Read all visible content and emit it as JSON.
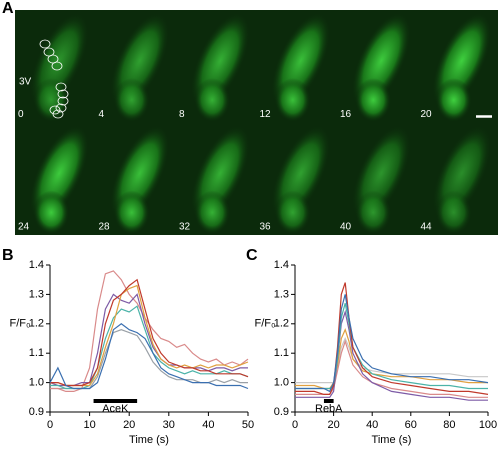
{
  "panel_labels": [
    "A",
    "B",
    "C"
  ],
  "frames": [
    0,
    4,
    8,
    12,
    16,
    20,
    24,
    28,
    32,
    36,
    40,
    44
  ],
  "region_label": "3V",
  "chart_data": [
    {
      "type": "line",
      "x_label": "Time (s)",
      "y_label": "F/F₀",
      "xlim": [
        0,
        50
      ],
      "xticks": [
        0,
        10,
        20,
        30,
        40,
        50
      ],
      "ylim": [
        0.9,
        1.4
      ],
      "yticks": [
        0.9,
        {
          "value": 1,
          "label": "1.0"
        },
        1.1,
        1.2,
        1.3,
        1.4
      ],
      "stimulus": {
        "label": "AceK",
        "x": [
          11,
          22
        ]
      },
      "x": [
        0,
        2,
        4,
        6,
        8,
        10,
        12,
        14,
        16,
        18,
        20,
        22,
        24,
        26,
        28,
        30,
        32,
        34,
        36,
        38,
        40,
        42,
        44,
        46,
        48,
        50
      ],
      "series": [
        {
          "color": "#9aa0a6",
          "values": [
            0.98,
            0.98,
            0.98,
            0.98,
            0.98,
            0.98,
            1.02,
            1.1,
            1.17,
            1.18,
            1.17,
            1.16,
            1.12,
            1.07,
            1.04,
            1.02,
            1.01,
            1.01,
            1.01,
            1.0,
            1.0,
            1.01,
            1.0,
            1.01,
            1.0,
            1.0
          ]
        },
        {
          "color": "#d98a8a",
          "values": [
            0.98,
            0.98,
            0.97,
            0.97,
            0.98,
            1.05,
            1.25,
            1.37,
            1.38,
            1.35,
            1.3,
            1.27,
            1.22,
            1.18,
            1.15,
            1.14,
            1.12,
            1.13,
            1.1,
            1.08,
            1.07,
            1.08,
            1.06,
            1.07,
            1.06,
            1.08
          ]
        },
        {
          "color": "#7d5ba6",
          "values": [
            1.0,
            0.99,
            0.99,
            0.99,
            1.0,
            1.0,
            1.1,
            1.25,
            1.3,
            1.28,
            1.27,
            1.3,
            1.2,
            1.12,
            1.08,
            1.06,
            1.06,
            1.05,
            1.05,
            1.05,
            1.04,
            1.05,
            1.05,
            1.04,
            1.05,
            1.05
          ]
        },
        {
          "color": "#4bb3a8",
          "values": [
            0.99,
            0.99,
            0.98,
            0.98,
            0.98,
            0.99,
            1.05,
            1.15,
            1.22,
            1.25,
            1.24,
            1.26,
            1.18,
            1.1,
            1.07,
            1.05,
            1.04,
            1.03,
            1.04,
            1.03,
            1.03,
            1.03,
            1.04,
            1.03,
            1.03,
            1.02
          ]
        },
        {
          "color": "#e0a040",
          "values": [
            1.0,
            1.0,
            0.99,
            0.99,
            0.99,
            0.99,
            1.03,
            1.12,
            1.2,
            1.3,
            1.32,
            1.33,
            1.22,
            1.13,
            1.08,
            1.06,
            1.05,
            1.06,
            1.05,
            1.06,
            1.05,
            1.06,
            1.06,
            1.05,
            1.06,
            1.07
          ]
        },
        {
          "color": "#c0392b",
          "values": [
            1.0,
            1.0,
            0.99,
            0.99,
            0.99,
            1.0,
            1.05,
            1.2,
            1.28,
            1.3,
            1.33,
            1.35,
            1.25,
            1.15,
            1.1,
            1.07,
            1.06,
            1.05,
            1.05,
            1.04,
            1.04,
            1.03,
            1.03,
            1.03,
            1.03,
            1.02
          ]
        },
        {
          "color": "#3a6fb0",
          "values": [
            1.0,
            1.05,
            0.99,
            0.98,
            0.98,
            0.98,
            1.0,
            1.08,
            1.18,
            1.2,
            1.18,
            1.17,
            1.15,
            1.1,
            1.05,
            1.03,
            1.02,
            1.01,
            1.0,
            1.0,
            1.0,
            0.99,
            0.99,
            0.99,
            0.99,
            0.98
          ]
        }
      ]
    },
    {
      "type": "line",
      "x_label": "Time (s)",
      "y_label": "F/F₀",
      "xlim": [
        0,
        100
      ],
      "xticks": [
        0,
        20,
        40,
        60,
        80,
        100
      ],
      "ylim": [
        0.9,
        1.4
      ],
      "yticks": [
        0.9,
        {
          "value": 1,
          "label": "1.0"
        },
        1.1,
        1.2,
        1.3,
        1.4
      ],
      "stimulus": {
        "label": "RebA",
        "x": [
          15,
          20
        ]
      },
      "x": [
        0,
        10,
        15,
        18,
        20,
        22,
        24,
        26,
        28,
        30,
        35,
        40,
        50,
        60,
        70,
        80,
        90,
        100
      ],
      "series": [
        {
          "color": "#c8c8c8",
          "values": [
            1.0,
            1.0,
            1.0,
            1.0,
            1.0,
            1.05,
            1.12,
            1.15,
            1.12,
            1.08,
            1.05,
            1.04,
            1.03,
            1.03,
            1.03,
            1.03,
            1.02,
            1.02
          ]
        },
        {
          "color": "#e0a040",
          "values": [
            0.99,
            0.99,
            0.98,
            0.98,
            1.0,
            1.06,
            1.15,
            1.18,
            1.14,
            1.08,
            1.04,
            1.03,
            1.02,
            1.02,
            1.01,
            1.01,
            1.0,
            1.0
          ]
        },
        {
          "color": "#d98a8a",
          "values": [
            0.96,
            0.96,
            0.96,
            0.96,
            0.98,
            1.04,
            1.1,
            1.14,
            1.1,
            1.06,
            1.02,
            1.0,
            0.98,
            0.97,
            0.96,
            0.96,
            0.95,
            0.95
          ]
        },
        {
          "color": "#7d5ba6",
          "values": [
            0.95,
            0.95,
            0.95,
            0.95,
            0.97,
            1.08,
            1.2,
            1.24,
            1.18,
            1.1,
            1.03,
            1.0,
            0.97,
            0.96,
            0.95,
            0.95,
            0.94,
            0.94
          ]
        },
        {
          "color": "#4bb3a8",
          "values": [
            0.98,
            0.98,
            0.98,
            0.98,
            0.99,
            1.08,
            1.22,
            1.27,
            1.2,
            1.12,
            1.06,
            1.03,
            1.01,
            1.0,
            0.99,
            0.99,
            0.98,
            0.98
          ]
        },
        {
          "color": "#c0392b",
          "values": [
            0.97,
            0.97,
            0.96,
            0.96,
            0.99,
            1.12,
            1.3,
            1.34,
            1.22,
            1.12,
            1.05,
            1.02,
            1.0,
            0.99,
            0.98,
            0.97,
            0.97,
            0.96
          ]
        },
        {
          "color": "#3a6fb0",
          "values": [
            0.98,
            0.98,
            0.98,
            0.97,
            1.0,
            1.1,
            1.25,
            1.3,
            1.22,
            1.15,
            1.08,
            1.05,
            1.03,
            1.02,
            1.02,
            1.01,
            1.01,
            1.0
          ]
        }
      ]
    }
  ]
}
